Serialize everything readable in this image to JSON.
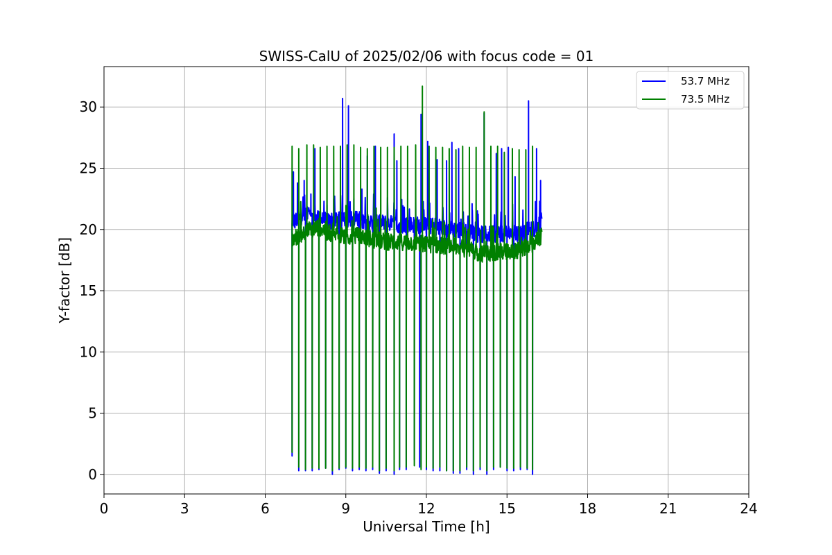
{
  "chart_data": {
    "type": "line",
    "title": "SWISS-CalU of 2025/02/06 with focus code = 01",
    "xlabel": "Universal Time [h]",
    "ylabel": "Y-factor [dB]",
    "xlim": [
      0,
      24
    ],
    "ylim": [
      -1.6,
      33.3
    ],
    "x_ticks": [
      0,
      3,
      6,
      9,
      12,
      15,
      18,
      21,
      24
    ],
    "y_ticks": [
      0,
      5,
      10,
      15,
      20,
      25,
      30
    ],
    "grid": true,
    "legend_position": "top-right",
    "series": [
      {
        "name": "53.7 MHz",
        "color": "#0000ff",
        "x_start": 7.0,
        "x_end": 16.3,
        "baseline": [
          [
            7.0,
            20.5
          ],
          [
            7.5,
            21.3
          ],
          [
            8.0,
            20.8
          ],
          [
            8.5,
            20.6
          ],
          [
            9.0,
            20.9
          ],
          [
            9.5,
            20.8
          ],
          [
            10.0,
            20.6
          ],
          [
            10.5,
            20.5
          ],
          [
            11.0,
            20.4
          ],
          [
            11.5,
            20.4
          ],
          [
            12.0,
            20.3
          ],
          [
            12.5,
            20.2
          ],
          [
            13.0,
            20.0
          ],
          [
            13.5,
            19.8
          ],
          [
            14.0,
            19.6
          ],
          [
            14.5,
            19.6
          ],
          [
            15.0,
            19.7
          ],
          [
            15.5,
            19.7
          ],
          [
            16.0,
            20.0
          ],
          [
            16.3,
            20.8
          ]
        ],
        "peaks": [
          [
            7.05,
            24.7
          ],
          [
            7.2,
            23.8
          ],
          [
            7.45,
            24.0
          ],
          [
            7.7,
            22.9
          ],
          [
            7.85,
            26.6
          ],
          [
            8.3,
            22.0
          ],
          [
            8.55,
            22.5
          ],
          [
            8.88,
            30.7
          ],
          [
            9.1,
            30.1
          ],
          [
            9.3,
            22.5
          ],
          [
            9.6,
            23.3
          ],
          [
            9.8,
            26.0
          ],
          [
            10.1,
            26.8
          ],
          [
            10.8,
            27.8
          ],
          [
            10.9,
            25.6
          ],
          [
            11.6,
            22.6
          ],
          [
            11.8,
            29.4
          ],
          [
            12.05,
            27.2
          ],
          [
            12.4,
            25.7
          ],
          [
            12.75,
            25.6
          ],
          [
            12.95,
            27.1
          ],
          [
            13.2,
            26.6
          ],
          [
            13.7,
            22.1
          ],
          [
            14.15,
            29.5
          ],
          [
            14.6,
            26.2
          ],
          [
            14.8,
            26.6
          ],
          [
            15.05,
            26.7
          ],
          [
            15.3,
            24.3
          ],
          [
            15.8,
            30.5
          ],
          [
            16.1,
            26.6
          ],
          [
            16.25,
            24.0
          ]
        ],
        "dips": [
          [
            7.0,
            1.5
          ],
          [
            7.25,
            0.3
          ],
          [
            7.5,
            0.3
          ],
          [
            7.75,
            0.3
          ],
          [
            8.0,
            0.4
          ],
          [
            8.25,
            0.5
          ],
          [
            8.5,
            0.0
          ],
          [
            8.75,
            0.4
          ],
          [
            9.0,
            0.5
          ],
          [
            9.25,
            0.3
          ],
          [
            9.5,
            0.4
          ],
          [
            9.75,
            0.3
          ],
          [
            10.0,
            0.4
          ],
          [
            10.25,
            0.1
          ],
          [
            10.5,
            0.3
          ],
          [
            10.8,
            0.0
          ],
          [
            11.0,
            0.4
          ],
          [
            11.25,
            0.4
          ],
          [
            11.55,
            1.2
          ],
          [
            11.75,
            0.6
          ],
          [
            12.0,
            0.4
          ],
          [
            12.25,
            0.3
          ],
          [
            12.5,
            0.3
          ],
          [
            12.75,
            0.3
          ],
          [
            13.0,
            0.1
          ],
          [
            13.25,
            0.1
          ],
          [
            13.5,
            0.4
          ],
          [
            13.75,
            0.0
          ],
          [
            14.0,
            0.4
          ],
          [
            14.25,
            0.0
          ],
          [
            14.5,
            0.4
          ],
          [
            14.75,
            0.6
          ],
          [
            15.0,
            0.3
          ],
          [
            15.25,
            0.3
          ],
          [
            15.5,
            0.4
          ],
          [
            15.75,
            0.4
          ],
          [
            15.95,
            0.0
          ]
        ]
      },
      {
        "name": "73.5 MHz",
        "color": "#008000",
        "x_start": 7.0,
        "x_end": 16.3,
        "baseline": [
          [
            7.0,
            19.2
          ],
          [
            7.5,
            19.8
          ],
          [
            8.0,
            20.2
          ],
          [
            8.5,
            19.6
          ],
          [
            9.0,
            19.4
          ],
          [
            9.5,
            19.5
          ],
          [
            10.0,
            19.2
          ],
          [
            10.5,
            19.0
          ],
          [
            11.0,
            19.0
          ],
          [
            11.5,
            18.9
          ],
          [
            12.0,
            18.8
          ],
          [
            12.5,
            18.7
          ],
          [
            13.0,
            18.6
          ],
          [
            13.5,
            18.4
          ],
          [
            14.0,
            18.0
          ],
          [
            14.5,
            18.1
          ],
          [
            15.0,
            18.2
          ],
          [
            15.5,
            18.3
          ],
          [
            16.0,
            18.9
          ],
          [
            16.3,
            19.5
          ]
        ],
        "peaks": [
          [
            7.0,
            26.8
          ],
          [
            7.25,
            26.6
          ],
          [
            7.55,
            26.9
          ],
          [
            7.8,
            26.9
          ],
          [
            8.05,
            26.7
          ],
          [
            8.3,
            26.8
          ],
          [
            8.55,
            26.8
          ],
          [
            8.8,
            26.8
          ],
          [
            9.05,
            26.9
          ],
          [
            9.3,
            26.9
          ],
          [
            9.55,
            26.7
          ],
          [
            9.8,
            26.6
          ],
          [
            10.05,
            26.8
          ],
          [
            10.3,
            26.7
          ],
          [
            10.55,
            26.7
          ],
          [
            10.8,
            26.7
          ],
          [
            11.05,
            26.8
          ],
          [
            11.3,
            26.8
          ],
          [
            11.6,
            26.9
          ],
          [
            11.85,
            31.7
          ],
          [
            12.1,
            26.8
          ],
          [
            12.35,
            26.7
          ],
          [
            12.6,
            26.7
          ],
          [
            12.85,
            26.6
          ],
          [
            13.1,
            26.5
          ],
          [
            13.35,
            26.8
          ],
          [
            13.6,
            26.7
          ],
          [
            13.85,
            26.7
          ],
          [
            14.15,
            29.6
          ],
          [
            14.4,
            26.8
          ],
          [
            14.65,
            26.8
          ],
          [
            14.9,
            26.3
          ],
          [
            15.2,
            26.6
          ],
          [
            15.45,
            26.5
          ],
          [
            15.7,
            26.5
          ],
          [
            15.95,
            26.8
          ]
        ],
        "dips": [
          [
            7.0,
            1.8
          ],
          [
            7.25,
            0.6
          ],
          [
            7.5,
            0.4
          ],
          [
            7.75,
            0.5
          ],
          [
            8.0,
            0.5
          ],
          [
            8.25,
            0.5
          ],
          [
            8.5,
            0.3
          ],
          [
            8.75,
            0.5
          ],
          [
            9.0,
            0.6
          ],
          [
            9.25,
            0.5
          ],
          [
            9.5,
            0.6
          ],
          [
            9.75,
            0.5
          ],
          [
            10.0,
            0.6
          ],
          [
            10.25,
            0.3
          ],
          [
            10.5,
            0.5
          ],
          [
            10.8,
            0.3
          ],
          [
            11.0,
            0.6
          ],
          [
            11.25,
            0.6
          ],
          [
            11.55,
            0.7
          ],
          [
            11.8,
            0.4
          ],
          [
            12.0,
            0.6
          ],
          [
            12.25,
            0.5
          ],
          [
            12.5,
            0.6
          ],
          [
            12.75,
            0.3
          ],
          [
            13.0,
            0.3
          ],
          [
            13.25,
            0.3
          ],
          [
            13.5,
            0.6
          ],
          [
            13.75,
            0.3
          ],
          [
            14.0,
            0.6
          ],
          [
            14.25,
            0.3
          ],
          [
            14.5,
            0.6
          ],
          [
            14.75,
            0.6
          ],
          [
            15.0,
            0.5
          ],
          [
            15.25,
            0.5
          ],
          [
            15.5,
            0.6
          ],
          [
            15.75,
            0.5
          ],
          [
            15.95,
            0.4
          ]
        ]
      }
    ]
  }
}
